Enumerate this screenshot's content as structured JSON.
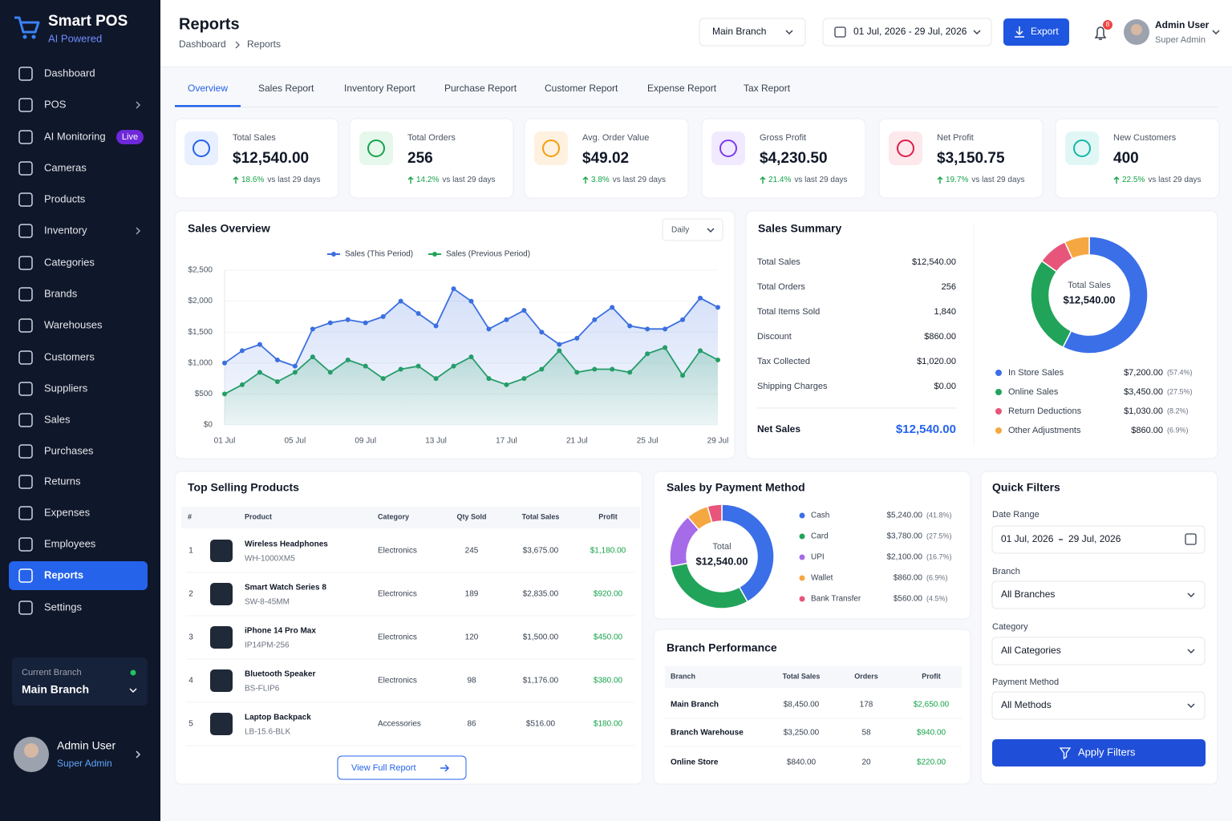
{
  "sidebar": {
    "brand": "Smart POS",
    "tagline": "AI Powered",
    "nav": [
      "Dashboard",
      "POS",
      "AI Monitoring",
      "Cameras",
      "Products",
      "Inventory",
      "Categories",
      "Brands",
      "Warehouses",
      "Customers",
      "Suppliers",
      "Sales",
      "Purchases",
      "Returns",
      "Expenses",
      "Employees",
      "Reports",
      "Settings"
    ],
    "live_badge": "Live",
    "current_branch_label": "Current Branch",
    "current_branch": "Main Branch",
    "user_name": "Admin User",
    "user_role": "Super Admin"
  },
  "header": {
    "title": "Reports",
    "breadcrumb": [
      "Dashboard",
      "Reports"
    ],
    "branch": "Main Branch",
    "date_range": "01 Jul, 2026 - 29 Jul, 2026",
    "export": "Export",
    "notifications": 8,
    "user_name": "Admin User",
    "user_role": "Super Admin"
  },
  "tabs": [
    "Overview",
    "Sales Report",
    "Inventory Report",
    "Purchase Report",
    "Customer Report",
    "Expense Report",
    "Tax Report"
  ],
  "kpis": [
    {
      "label": "Total Sales",
      "value": "$12,540.00",
      "change": "18.6%",
      "note": "vs last 29 days"
    },
    {
      "label": "Total Orders",
      "value": "256",
      "change": "14.2%",
      "note": "vs last 29 days"
    },
    {
      "label": "Avg. Order Value",
      "value": "$49.02",
      "change": "3.8%",
      "note": "vs last 29 days"
    },
    {
      "label": "Gross Profit",
      "value": "$4,230.50",
      "change": "21.4%",
      "note": "vs last 29 days"
    },
    {
      "label": "Net Profit",
      "value": "$3,150.75",
      "change": "19.7%",
      "note": "vs last 29 days"
    },
    {
      "label": "New Customers",
      "value": "400",
      "change": "22.5%",
      "note": "vs last 29 days"
    }
  ],
  "chart_data": [
    {
      "type": "line",
      "title": "Sales Overview",
      "period": "Daily",
      "categories": [
        "01 Jul",
        null,
        null,
        null,
        "05 Jul",
        null,
        null,
        null,
        "09 Jul",
        null,
        null,
        null,
        "13 Jul",
        null,
        null,
        null,
        "17 Jul",
        null,
        null,
        null,
        "21 Jul",
        null,
        null,
        null,
        "25 Jul",
        null,
        null,
        null,
        "29 Jul"
      ],
      "series": [
        {
          "name": "Sales (This Period)",
          "color": "#3b6fe0",
          "values": [
            1000,
            1200,
            1300,
            1050,
            950,
            1550,
            1650,
            1700,
            1650,
            1750,
            2000,
            1800,
            1600,
            2200,
            2000,
            1550,
            1700,
            1850,
            1500,
            1300,
            1400,
            1700,
            1900,
            1600,
            1550,
            1550,
            1700,
            2050,
            1900
          ]
        },
        {
          "name": "Sales (Previous Period)",
          "color": "#22a35a",
          "values": [
            500,
            650,
            850,
            700,
            850,
            1100,
            850,
            1050,
            950,
            750,
            900,
            950,
            750,
            950,
            1100,
            750,
            650,
            750,
            900,
            1200,
            850,
            900,
            900,
            850,
            1150,
            1250,
            800,
            1200,
            1050
          ]
        }
      ],
      "ylim": [
        0,
        2500
      ],
      "yticks": [
        {
          "value": 0,
          "label": "$0"
        },
        {
          "value": 500,
          "label": "$500"
        },
        {
          "value": 1000,
          "label": "$1,000"
        },
        {
          "value": 1500,
          "label": "$1,500"
        },
        {
          "value": 2000,
          "label": "$2,000"
        },
        {
          "value": 2500,
          "label": "$2,500"
        }
      ],
      "grid": true
    },
    {
      "type": "donut",
      "title": "Sales Summary",
      "center_label": "Total Sales",
      "center_value": "$12,540.00",
      "categories": [
        "In Store Sales",
        "Online Sales",
        "Return Deductions",
        "Other Adjustments"
      ],
      "values": [
        7200,
        3450,
        1030,
        860
      ],
      "value_labels": [
        "$7,200.00",
        "$3,450.00",
        "$1,030.00",
        "$860.00"
      ],
      "share_labels": [
        "(57.4%)",
        "(27.5%)",
        "(8.2%)",
        "(6.9%)"
      ],
      "colors": [
        "#3b6fe8",
        "#22a35a",
        "#e8557a",
        "#f5a742"
      ]
    },
    {
      "type": "donut",
      "title": "Sales by Payment Method",
      "center_label": "Total",
      "center_value": "$12,540.00",
      "categories": [
        "Cash",
        "Card",
        "UPI",
        "Wallet",
        "Bank Transfer"
      ],
      "values": [
        5240,
        3780,
        2100,
        860,
        560
      ],
      "value_labels": [
        "$5,240.00",
        "$3,780.00",
        "$2,100.00",
        "$860.00",
        "$560.00"
      ],
      "share_labels": [
        "(41.8%)",
        "(27.5%)",
        "(16.7%)",
        "(6.9%)",
        "(4.5%)"
      ],
      "colors": [
        "#3b6fe8",
        "#22a35a",
        "#a66be8",
        "#f5a742",
        "#e8557a"
      ]
    }
  ],
  "sales_summary": {
    "rows": [
      [
        "Total Sales",
        "$12,540.00"
      ],
      [
        "Total Orders",
        "256"
      ],
      [
        "Total Items Sold",
        "1,840"
      ],
      [
        "Discount",
        "$860.00"
      ],
      [
        "Tax Collected",
        "$1,020.00"
      ],
      [
        "Shipping Charges",
        "$0.00"
      ]
    ],
    "net_label": "Net Sales",
    "net_value": "$12,540.00"
  },
  "top_products": {
    "title": "Top Selling Products",
    "columns": [
      "#",
      "Product",
      "Category",
      "Qty Sold",
      "Total Sales",
      "Profit"
    ],
    "rows": [
      {
        "rank": 1,
        "name": "Wireless Headphones",
        "sku": "WH-1000XM5",
        "category": "Electronics",
        "qty": 245,
        "total": "$3,675.00",
        "profit": "$1,180.00"
      },
      {
        "rank": 2,
        "name": "Smart Watch Series 8",
        "sku": "SW-8-45MM",
        "category": "Electronics",
        "qty": 189,
        "total": "$2,835.00",
        "profit": "$920.00"
      },
      {
        "rank": 3,
        "name": "iPhone 14 Pro Max",
        "sku": "IP14PM-256",
        "category": "Electronics",
        "qty": 120,
        "total": "$1,500.00",
        "profit": "$450.00"
      },
      {
        "rank": 4,
        "name": "Bluetooth Speaker",
        "sku": "BS-FLIP6",
        "category": "Electronics",
        "qty": 98,
        "total": "$1,176.00",
        "profit": "$380.00"
      },
      {
        "rank": 5,
        "name": "Laptop Backpack",
        "sku": "LB-15.6-BLK",
        "category": "Accessories",
        "qty": 86,
        "total": "$516.00",
        "profit": "$180.00"
      }
    ],
    "button": "View Full Report"
  },
  "branch_performance": {
    "title": "Branch Performance",
    "columns": [
      "Branch",
      "Total Sales",
      "Orders",
      "Profit"
    ],
    "rows": [
      {
        "branch": "Main Branch",
        "total": "$8,450.00",
        "orders": 178,
        "profit": "$2,650.00"
      },
      {
        "branch": "Branch Warehouse",
        "total": "$3,250.00",
        "orders": 58,
        "profit": "$940.00"
      },
      {
        "branch": "Online Store",
        "total": "$840.00",
        "orders": 20,
        "profit": "$220.00"
      }
    ]
  },
  "quick_filters": {
    "title": "Quick Filters",
    "date_label": "Date Range",
    "date_from": "01 Jul, 2026",
    "date_to": "29 Jul, 2026",
    "branch_label": "Branch",
    "branch": "All Branches",
    "category_label": "Category",
    "category": "All Categories",
    "payment_label": "Payment Method",
    "payment": "All Methods",
    "button": "Apply Filters"
  }
}
